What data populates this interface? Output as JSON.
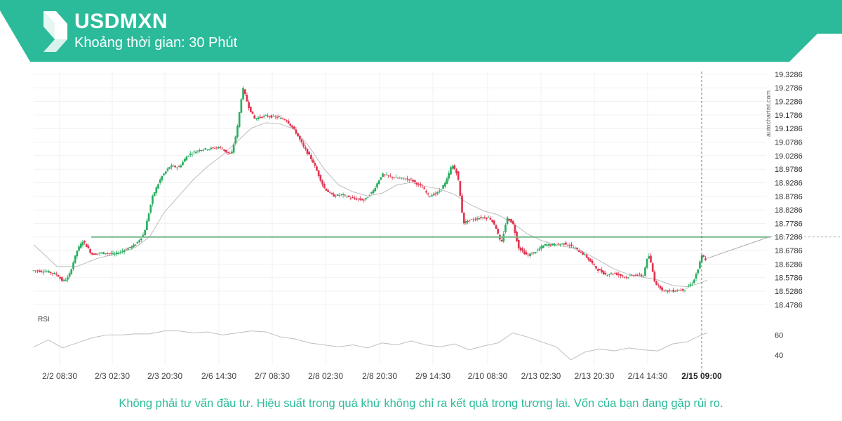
{
  "header": {
    "title": "USDMXN",
    "subtitle": "Khoảng thời gian: 30 Phút",
    "brand_color": "#2bbb9b",
    "logo_icon": "autochartist-s-logo-icon"
  },
  "watermark": "autochartist.com",
  "disclaimer": "Không phải tư vấn đầu tư. Hiệu suất trong quá khứ không chỉ ra kết quả trong tương lai. Vốn của bạn đang gặp rủi ro.",
  "chart_data": {
    "type": "candlestick",
    "y_axis": {
      "range": [
        18.4536,
        19.3386
      ],
      "ticks": [
        "19.3286",
        "19.2786",
        "19.2286",
        "19.1786",
        "19.1286",
        "19.0786",
        "19.0286",
        "18.9786",
        "18.9286",
        "18.8786",
        "18.8286",
        "18.7786",
        "18.7286",
        "18.6786",
        "18.6286",
        "18.5786",
        "18.5286",
        "18.4786"
      ]
    },
    "x_axis": {
      "ticks": [
        "2/2 08:30",
        "2/3 02:30",
        "2/3 20:30",
        "2/6 14:30",
        "2/7 08:30",
        "2/8 02:30",
        "2/8 20:30",
        "2/9 14:30",
        "2/10 08:30",
        "2/13 02:30",
        "2/13 20:30",
        "2/14 14:30",
        "2/15 09:00"
      ],
      "highlight": "2/15 09:00"
    },
    "price_path": [
      [
        0,
        18.605
      ],
      [
        5,
        18.6
      ],
      [
        8,
        18.59
      ],
      [
        10,
        18.565
      ],
      [
        12,
        18.58
      ],
      [
        15,
        18.68
      ],
      [
        17,
        18.715
      ],
      [
        20,
        18.665
      ],
      [
        24,
        18.67
      ],
      [
        28,
        18.665
      ],
      [
        32,
        18.685
      ],
      [
        35,
        18.7
      ],
      [
        38,
        18.74
      ],
      [
        41,
        18.88
      ],
      [
        44,
        18.95
      ],
      [
        47,
        18.99
      ],
      [
        50,
        18.985
      ],
      [
        53,
        19.03
      ],
      [
        57,
        19.05
      ],
      [
        61,
        19.055
      ],
      [
        64,
        19.06
      ],
      [
        68,
        19.03
      ],
      [
        70,
        19.12
      ],
      [
        72,
        19.28
      ],
      [
        74,
        19.21
      ],
      [
        76,
        19.165
      ],
      [
        80,
        19.175
      ],
      [
        84,
        19.17
      ],
      [
        87,
        19.16
      ],
      [
        90,
        19.12
      ],
      [
        93,
        19.06
      ],
      [
        96,
        19.01
      ],
      [
        98,
        18.96
      ],
      [
        100,
        18.91
      ],
      [
        103,
        18.88
      ],
      [
        106,
        18.885
      ],
      [
        110,
        18.87
      ],
      [
        114,
        18.865
      ],
      [
        117,
        18.9
      ],
      [
        120,
        18.96
      ],
      [
        123,
        18.95
      ],
      [
        126,
        18.945
      ],
      [
        130,
        18.94
      ],
      [
        134,
        18.91
      ],
      [
        136,
        18.88
      ],
      [
        139,
        18.89
      ],
      [
        142,
        18.93
      ],
      [
        144,
        18.995
      ],
      [
        146,
        18.96
      ],
      [
        148,
        18.78
      ],
      [
        150,
        18.79
      ],
      [
        154,
        18.8
      ],
      [
        157,
        18.8
      ],
      [
        159,
        18.77
      ],
      [
        161,
        18.7
      ],
      [
        163,
        18.8
      ],
      [
        165,
        18.78
      ],
      [
        167,
        18.69
      ],
      [
        170,
        18.66
      ],
      [
        173,
        18.675
      ],
      [
        176,
        18.7
      ],
      [
        180,
        18.7
      ],
      [
        183,
        18.705
      ],
      [
        186,
        18.69
      ],
      [
        190,
        18.66
      ],
      [
        194,
        18.61
      ],
      [
        197,
        18.59
      ],
      [
        200,
        18.595
      ],
      [
        204,
        18.58
      ],
      [
        207,
        18.59
      ],
      [
        210,
        18.585
      ],
      [
        211,
        18.64
      ],
      [
        212,
        18.66
      ],
      [
        214,
        18.56
      ],
      [
        217,
        18.53
      ],
      [
        220,
        18.53
      ],
      [
        224,
        18.535
      ],
      [
        227,
        18.56
      ],
      [
        229,
        18.615
      ],
      [
        230,
        18.66
      ],
      [
        232,
        18.64
      ]
    ],
    "moving_average": [
      [
        0,
        18.7
      ],
      [
        8,
        18.62
      ],
      [
        15,
        18.62
      ],
      [
        22,
        18.65
      ],
      [
        30,
        18.67
      ],
      [
        35,
        18.69
      ],
      [
        40,
        18.73
      ],
      [
        45,
        18.82
      ],
      [
        50,
        18.88
      ],
      [
        55,
        18.94
      ],
      [
        60,
        18.99
      ],
      [
        65,
        19.03
      ],
      [
        70,
        19.08
      ],
      [
        75,
        19.13
      ],
      [
        80,
        19.15
      ],
      [
        85,
        19.145
      ],
      [
        90,
        19.125
      ],
      [
        95,
        19.06
      ],
      [
        100,
        18.98
      ],
      [
        105,
        18.92
      ],
      [
        110,
        18.895
      ],
      [
        115,
        18.88
      ],
      [
        120,
        18.89
      ],
      [
        125,
        18.92
      ],
      [
        130,
        18.93
      ],
      [
        135,
        18.915
      ],
      [
        140,
        18.905
      ],
      [
        145,
        18.885
      ],
      [
        150,
        18.85
      ],
      [
        155,
        18.825
      ],
      [
        160,
        18.81
      ],
      [
        165,
        18.78
      ],
      [
        170,
        18.74
      ],
      [
        175,
        18.715
      ],
      [
        180,
        18.7
      ],
      [
        185,
        18.69
      ],
      [
        190,
        18.67
      ],
      [
        195,
        18.64
      ],
      [
        200,
        18.61
      ],
      [
        205,
        18.59
      ],
      [
        210,
        18.58
      ],
      [
        215,
        18.57
      ],
      [
        220,
        18.55
      ],
      [
        225,
        18.545
      ],
      [
        230,
        18.56
      ],
      [
        232,
        18.57
      ]
    ],
    "support_level": 18.7286,
    "projection": {
      "from": [
        232,
        18.65
      ],
      "to": [
        254,
        18.7286
      ]
    },
    "rsi": {
      "label": "RSI",
      "ticks": [
        "60",
        "40"
      ],
      "range": [
        30,
        75
      ],
      "values": [
        [
          0,
          48
        ],
        [
          5,
          55
        ],
        [
          10,
          47
        ],
        [
          15,
          52
        ],
        [
          20,
          57
        ],
        [
          25,
          60
        ],
        [
          30,
          60
        ],
        [
          35,
          61
        ],
        [
          40,
          61
        ],
        [
          45,
          64
        ],
        [
          50,
          64
        ],
        [
          55,
          62
        ],
        [
          60,
          63
        ],
        [
          65,
          60
        ],
        [
          70,
          62
        ],
        [
          75,
          64
        ],
        [
          80,
          63
        ],
        [
          85,
          58
        ],
        [
          90,
          56
        ],
        [
          95,
          52
        ],
        [
          100,
          50
        ],
        [
          105,
          48
        ],
        [
          110,
          50
        ],
        [
          115,
          47
        ],
        [
          120,
          52
        ],
        [
          125,
          50
        ],
        [
          130,
          54
        ],
        [
          135,
          50
        ],
        [
          140,
          48
        ],
        [
          145,
          51
        ],
        [
          150,
          45
        ],
        [
          155,
          49
        ],
        [
          160,
          52
        ],
        [
          165,
          62
        ],
        [
          170,
          58
        ],
        [
          175,
          53
        ],
        [
          180,
          48
        ],
        [
          185,
          35
        ],
        [
          190,
          43
        ],
        [
          195,
          46
        ],
        [
          200,
          44
        ],
        [
          205,
          47
        ],
        [
          210,
          45
        ],
        [
          215,
          44
        ],
        [
          220,
          51
        ],
        [
          225,
          53
        ],
        [
          230,
          60
        ],
        [
          232,
          62
        ]
      ]
    }
  }
}
